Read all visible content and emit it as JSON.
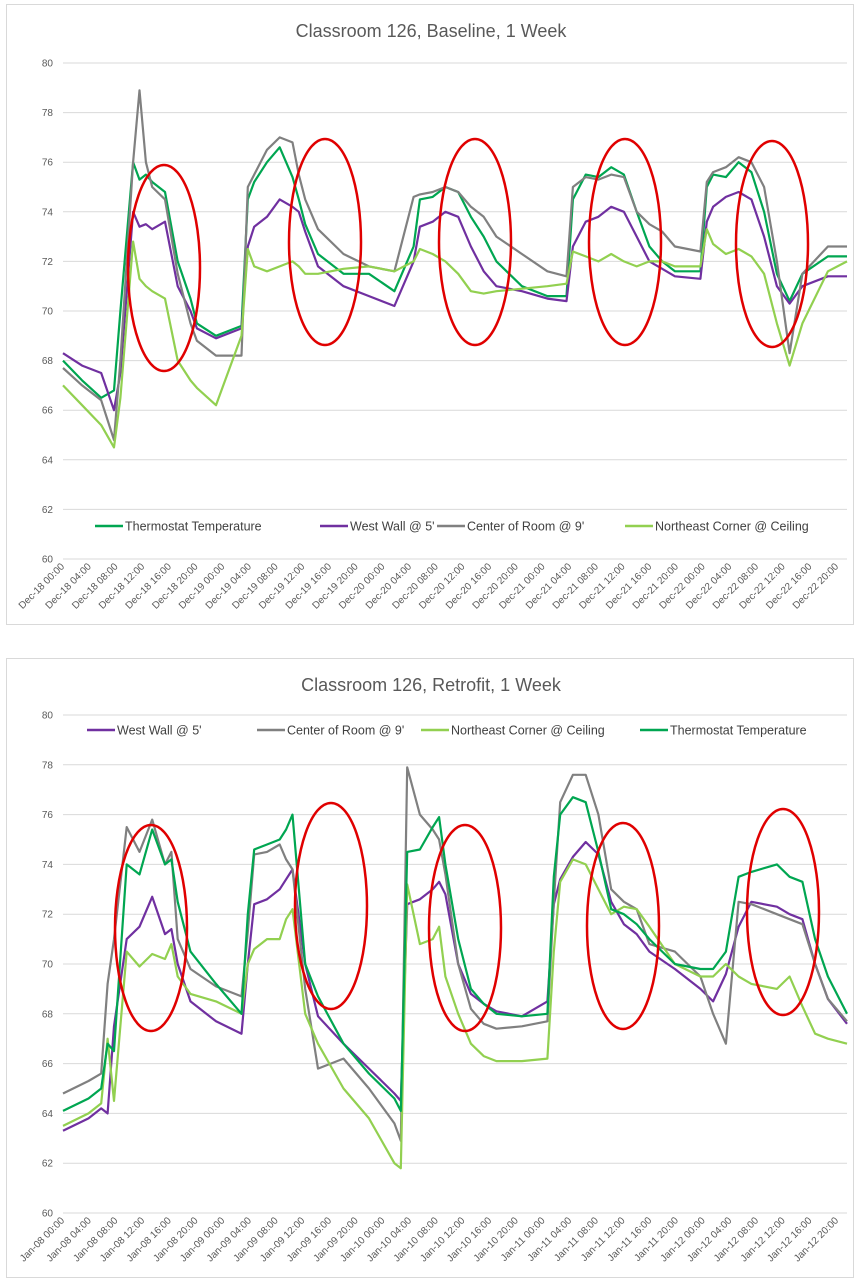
{
  "chart_data": [
    {
      "type": "line",
      "title": "Classroom 126, Baseline, 1 Week",
      "ylim": [
        60,
        80
      ],
      "yticks": [
        60,
        62,
        64,
        66,
        68,
        70,
        72,
        74,
        76,
        78,
        80
      ],
      "xlim": [
        0,
        123
      ],
      "x_unit": "hours since first tick",
      "tick_labels": [
        "Dec-18 00:00",
        "Dec-18 04:00",
        "Dec-18 08:00",
        "Dec-18 12:00",
        "Dec-18 16:00",
        "Dec-18 20:00",
        "Dec-19 00:00",
        "Dec-19 04:00",
        "Dec-19 08:00",
        "Dec-19 12:00",
        "Dec-19 16:00",
        "Dec-19 20:00",
        "Dec-20 00:00",
        "Dec-20 04:00",
        "Dec-20 08:00",
        "Dec-20 12:00",
        "Dec-20 16:00",
        "Dec-20 20:00",
        "Dec-21 00:00",
        "Dec-21 04:00",
        "Dec-21 08:00",
        "Dec-21 12:00",
        "Dec-21 16:00",
        "Dec-21 20:00",
        "Dec-22 00:00",
        "Dec-22 04:00",
        "Dec-22 08:00",
        "Dec-22 12:00",
        "Dec-22 16:00",
        "Dec-22 20:00"
      ],
      "grid": true,
      "legend_position": "bottom",
      "legend": [
        "Thermostat Temperature",
        "West Wall @ 5'",
        "Center of Room @ 9'",
        "Northeast Corner @ Ceiling"
      ],
      "series": [
        {
          "name": "Thermostat Temperature",
          "color": "#00a651",
          "x": [
            0,
            3,
            6,
            8,
            9,
            11,
            12,
            13,
            14,
            16,
            18,
            20,
            21,
            24,
            28,
            29,
            30,
            32,
            34,
            36,
            37,
            38,
            40,
            44,
            48,
            52,
            55,
            56,
            58,
            60,
            62,
            64,
            66,
            68,
            72,
            76,
            79,
            80,
            82,
            84,
            86,
            88,
            90,
            92,
            94,
            96,
            100,
            101,
            102,
            104,
            106,
            108,
            110,
            112,
            114,
            116,
            120,
            123
          ],
          "y": [
            68.0,
            67.2,
            66.5,
            66.8,
            70,
            76,
            75.3,
            75.5,
            75.2,
            74.8,
            72,
            70.5,
            69.5,
            69.0,
            69.4,
            74.5,
            75.2,
            76,
            76.6,
            75.4,
            74.5,
            73.5,
            72.3,
            71.5,
            71.5,
            70.8,
            72.6,
            74.5,
            74.6,
            75,
            74.8,
            73.8,
            73,
            72,
            71,
            70.6,
            70.6,
            74.5,
            75.5,
            75.4,
            75.8,
            75.5,
            74,
            72.6,
            72,
            71.6,
            71.6,
            75,
            75.5,
            75.4,
            76,
            75.6,
            74,
            71.5,
            70.4,
            71.5,
            72.2,
            72.2
          ]
        },
        {
          "name": "West Wall @ 5'",
          "color": "#7030a0",
          "x": [
            0,
            3,
            6,
            8,
            9,
            11,
            12,
            13,
            14,
            16,
            18,
            20,
            21,
            24,
            28,
            29,
            30,
            32,
            34,
            36,
            37,
            38,
            40,
            44,
            48,
            52,
            55,
            56,
            58,
            60,
            62,
            64,
            66,
            68,
            72,
            76,
            79,
            80,
            82,
            84,
            86,
            88,
            90,
            92,
            94,
            96,
            100,
            101,
            102,
            104,
            106,
            108,
            110,
            112,
            114,
            116,
            120,
            123
          ],
          "y": [
            68.3,
            67.8,
            67.5,
            66.0,
            67.5,
            74,
            73.4,
            73.5,
            73.3,
            73.6,
            71,
            70.0,
            69.3,
            68.9,
            69.3,
            72.6,
            73.4,
            73.8,
            74.5,
            74.2,
            74.0,
            73.2,
            71.8,
            71.0,
            70.6,
            70.2,
            72.0,
            73.4,
            73.6,
            74,
            73.8,
            72.6,
            71.6,
            71,
            70.8,
            70.5,
            70.4,
            72.6,
            73.6,
            73.8,
            74.2,
            74.0,
            73,
            72,
            71.7,
            71.4,
            71.3,
            73.6,
            74.2,
            74.6,
            74.8,
            74.5,
            73,
            71,
            70.3,
            71.0,
            71.4,
            71.4
          ]
        },
        {
          "name": "Center of Room @ 9'",
          "color": "#808080",
          "x": [
            0,
            3,
            6,
            8,
            9,
            11,
            12,
            13,
            14,
            16,
            18,
            20,
            21,
            24,
            28,
            29,
            30,
            32,
            34,
            36,
            37,
            38,
            40,
            44,
            48,
            52,
            55,
            56,
            58,
            60,
            62,
            64,
            66,
            68,
            72,
            76,
            79,
            80,
            82,
            84,
            86,
            88,
            90,
            92,
            94,
            96,
            100,
            101,
            102,
            104,
            106,
            108,
            110,
            112,
            114,
            116,
            120,
            123
          ],
          "y": [
            67.7,
            67.0,
            66.4,
            64.8,
            68,
            76,
            78.9,
            76,
            75.0,
            74.5,
            71.5,
            69.5,
            68.8,
            68.2,
            68.2,
            75,
            75.5,
            76.5,
            77.0,
            76.8,
            75.5,
            74.5,
            73.3,
            72.3,
            71.8,
            71.6,
            74.6,
            74.7,
            74.8,
            75,
            74.8,
            74.2,
            73.8,
            73,
            72.3,
            71.6,
            71.4,
            75,
            75.4,
            75.3,
            75.5,
            75.4,
            74,
            73.5,
            73.2,
            72.6,
            72.4,
            75.2,
            75.6,
            75.8,
            76.2,
            76.0,
            75,
            72,
            68.3,
            71.5,
            72.6,
            72.6
          ]
        },
        {
          "name": "Northeast Corner @ Ceiling",
          "color": "#92d050",
          "x": [
            0,
            3,
            6,
            8,
            9,
            11,
            12,
            13,
            14,
            16,
            18,
            20,
            21,
            24,
            28,
            29,
            30,
            32,
            34,
            36,
            37,
            38,
            40,
            44,
            48,
            52,
            55,
            56,
            58,
            60,
            62,
            64,
            66,
            68,
            72,
            76,
            79,
            80,
            82,
            84,
            86,
            88,
            90,
            92,
            94,
            96,
            100,
            101,
            102,
            104,
            106,
            108,
            110,
            112,
            114,
            116,
            120,
            123
          ],
          "y": [
            67.0,
            66.2,
            65.4,
            64.5,
            66.5,
            72.8,
            71.3,
            71.0,
            70.8,
            70.5,
            68,
            67.2,
            66.9,
            66.2,
            69.0,
            72.5,
            71.8,
            71.6,
            71.8,
            72.0,
            71.8,
            71.5,
            71.5,
            71.7,
            71.8,
            71.6,
            72.0,
            72.5,
            72.3,
            72.0,
            71.5,
            70.8,
            70.7,
            70.8,
            70.9,
            71.0,
            71.1,
            72.4,
            72.2,
            72.0,
            72.3,
            72.0,
            71.8,
            72,
            72,
            71.8,
            71.8,
            73.3,
            72.7,
            72.3,
            72.5,
            72.2,
            71.5,
            69.5,
            67.8,
            69.5,
            71.6,
            72.0
          ]
        }
      ]
    },
    {
      "type": "line",
      "title": "Classroom 126, Retrofit, 1 Week",
      "ylim": [
        60,
        80
      ],
      "yticks": [
        60,
        62,
        64,
        66,
        68,
        70,
        72,
        74,
        76,
        78,
        80
      ],
      "xlim": [
        0,
        123
      ],
      "x_unit": "hours since first tick",
      "tick_labels": [
        "Jan-08 00:00",
        "Jan-08 04:00",
        "Jan-08 08:00",
        "Jan-08 12:00",
        "Jan-08 16:00",
        "Jan-08 20:00",
        "Jan-09 00:00",
        "Jan-09 04:00",
        "Jan-09 08:00",
        "Jan-09 12:00",
        "Jan-09 16:00",
        "Jan-09 20:00",
        "Jan-10 00:00",
        "Jan-10 04:00",
        "Jan-10 08:00",
        "Jan-10 12:00",
        "Jan-10 16:00",
        "Jan-10 20:00",
        "Jan-11 00:00",
        "Jan-11 04:00",
        "Jan-11 08:00",
        "Jan-11 12:00",
        "Jan-11 16:00",
        "Jan-11 20:00",
        "Jan-12 00:00",
        "Jan-12 04:00",
        "Jan-12 08:00",
        "Jan-12 12:00",
        "Jan-12 16:00",
        "Jan-12 20:00"
      ],
      "grid": true,
      "legend_position": "top",
      "legend": [
        "West Wall @ 5'",
        "Center of Room @ 9'",
        "Northeast Corner @ Ceiling",
        "Thermostat Temperature"
      ],
      "series": [
        {
          "name": "West Wall @ 5'",
          "color": "#7030a0",
          "x": [
            0,
            4,
            6,
            7,
            8,
            10,
            12,
            14,
            16,
            17,
            18,
            20,
            24,
            28,
            29,
            30,
            32,
            34,
            35,
            36,
            38,
            40,
            44,
            48,
            52,
            53,
            54,
            56,
            58,
            59,
            60,
            62,
            64,
            66,
            68,
            72,
            76,
            77,
            78,
            80,
            82,
            84,
            86,
            88,
            90,
            92,
            96,
            100,
            102,
            104,
            106,
            108,
            112,
            114,
            116,
            118,
            120,
            123
          ],
          "y": [
            63.3,
            63.8,
            64.2,
            64.0,
            67.5,
            71,
            71.5,
            72.7,
            71.2,
            71.4,
            70,
            68.5,
            67.7,
            67.2,
            70,
            72.4,
            72.6,
            73,
            73.4,
            73.8,
            70,
            67.9,
            66.8,
            65.8,
            64.8,
            64.5,
            72.4,
            72.6,
            73,
            73.3,
            72.8,
            70,
            68.8,
            68.4,
            68.1,
            67.9,
            68.5,
            72.4,
            73.4,
            74.3,
            74.9,
            74.4,
            72.5,
            71.6,
            71.2,
            70.5,
            69.8,
            69.0,
            68.5,
            69.6,
            71.5,
            72.5,
            72.3,
            72.0,
            71.8,
            70,
            68.6,
            67.6
          ]
        },
        {
          "name": "Center of Room @ 9'",
          "color": "#808080",
          "x": [
            0,
            4,
            6,
            7,
            8,
            10,
            12,
            14,
            16,
            17,
            18,
            20,
            24,
            28,
            29,
            30,
            32,
            34,
            35,
            36,
            38,
            40,
            44,
            48,
            52,
            53,
            54,
            56,
            58,
            59,
            60,
            62,
            64,
            66,
            68,
            72,
            76,
            77,
            78,
            80,
            82,
            84,
            86,
            88,
            90,
            92,
            96,
            100,
            102,
            104,
            106,
            108,
            112,
            114,
            116,
            118,
            120,
            123
          ],
          "y": [
            64.8,
            65.3,
            65.6,
            69.2,
            71,
            75.5,
            74.5,
            75.8,
            74,
            74.5,
            71,
            69.8,
            69.1,
            68.7,
            71.3,
            74.4,
            74.5,
            74.8,
            74.2,
            73.8,
            69,
            65.8,
            66.2,
            65.0,
            63.6,
            62.9,
            77.9,
            76,
            75.4,
            75,
            73.6,
            70,
            68.2,
            67.6,
            67.4,
            67.5,
            67.7,
            72.5,
            76.5,
            77.6,
            77.6,
            76.0,
            73,
            72.5,
            72.2,
            70.8,
            70.5,
            69.5,
            68.0,
            66.8,
            72.5,
            72.4,
            72.0,
            71.8,
            71.6,
            70,
            68.6,
            67.7
          ]
        },
        {
          "name": "Northeast Corner @ Ceiling",
          "color": "#92d050",
          "x": [
            0,
            4,
            6,
            7,
            8,
            10,
            12,
            14,
            16,
            17,
            18,
            20,
            24,
            28,
            29,
            30,
            32,
            34,
            35,
            36,
            38,
            40,
            44,
            48,
            52,
            53,
            54,
            56,
            58,
            59,
            60,
            62,
            64,
            66,
            68,
            72,
            76,
            77,
            78,
            80,
            82,
            84,
            86,
            88,
            90,
            92,
            96,
            100,
            102,
            104,
            106,
            108,
            112,
            114,
            116,
            118,
            120,
            123
          ],
          "y": [
            63.5,
            64.0,
            64.4,
            67.0,
            64.5,
            70.5,
            69.9,
            70.4,
            70.2,
            70.8,
            69.5,
            68.8,
            68.5,
            68.0,
            70,
            70.6,
            71,
            71,
            71.8,
            72.2,
            68,
            66.8,
            65.0,
            63.8,
            62.0,
            61.8,
            73.2,
            70.8,
            71.0,
            71.5,
            69.5,
            68,
            66.8,
            66.3,
            66.1,
            66.1,
            66.2,
            70.5,
            73.3,
            74.2,
            74.0,
            73.0,
            72.0,
            72.3,
            72.2,
            71.5,
            70.0,
            69.5,
            69.5,
            70.0,
            69.5,
            69.2,
            69.0,
            69.5,
            68.3,
            67.2,
            67.0,
            66.8
          ]
        },
        {
          "name": "Thermostat Temperature",
          "color": "#00a651",
          "x": [
            0,
            4,
            6,
            7,
            8,
            10,
            12,
            14,
            16,
            17,
            18,
            20,
            24,
            28,
            29,
            30,
            32,
            34,
            35,
            36,
            38,
            40,
            44,
            48,
            52,
            53,
            54,
            56,
            58,
            59,
            60,
            62,
            64,
            66,
            68,
            72,
            76,
            77,
            78,
            80,
            82,
            84,
            86,
            88,
            90,
            92,
            96,
            100,
            102,
            104,
            106,
            108,
            112,
            114,
            116,
            118,
            120,
            123
          ],
          "y": [
            64.1,
            64.6,
            65.0,
            66.8,
            66.5,
            74,
            73.6,
            75.4,
            74.0,
            74.2,
            72.5,
            70.5,
            69.2,
            68.0,
            72,
            74.6,
            74.8,
            75,
            75.4,
            76.0,
            70,
            68.7,
            66.8,
            65.6,
            64.6,
            64.1,
            74.5,
            74.6,
            75.5,
            75.9,
            74.0,
            71,
            69.0,
            68.4,
            68.0,
            67.9,
            68.0,
            73.5,
            76.0,
            76.7,
            76.5,
            74.5,
            72.2,
            72.0,
            71.6,
            71.0,
            70.0,
            69.8,
            69.8,
            70.5,
            73.5,
            73.7,
            74.0,
            73.5,
            73.3,
            71,
            69.5,
            68.0
          ]
        }
      ]
    }
  ]
}
